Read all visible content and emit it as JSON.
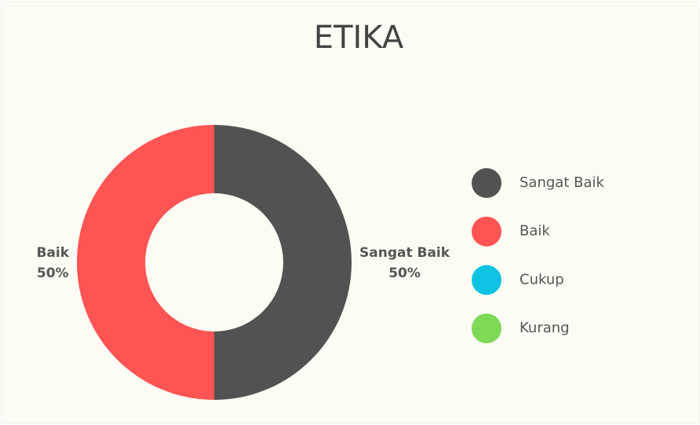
{
  "chart_data": {
    "type": "donut",
    "title": "ETIKA",
    "categories": [
      "Sangat Baik",
      "Baik",
      "Cukup",
      "Kurang"
    ],
    "values": [
      50,
      50,
      0,
      0
    ],
    "value_labels": [
      "50%",
      "50%",
      null,
      null
    ],
    "colors": [
      "#525252",
      "#ff5454",
      "#0fc3e3",
      "#7ed957"
    ],
    "legend": "right"
  }
}
